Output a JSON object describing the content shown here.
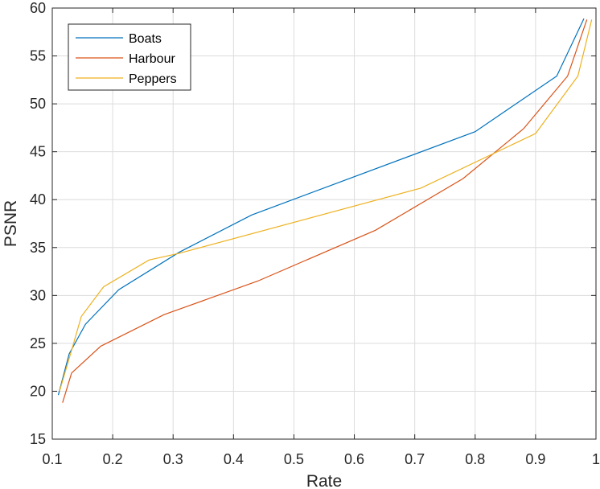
{
  "chart_data": {
    "type": "line",
    "xlabel": "Rate",
    "ylabel": "PSNR",
    "xlim": [
      0.1,
      1
    ],
    "ylim": [
      15,
      60
    ],
    "xticks": [
      0.1,
      0.2,
      0.3,
      0.4,
      0.5,
      0.6,
      0.7,
      0.8,
      0.9,
      1
    ],
    "xtick_labels": [
      "0.1",
      "0.2",
      "0.3",
      "0.4",
      "0.5",
      "0.6",
      "0.7",
      "0.8",
      "0.9",
      "1"
    ],
    "yticks": [
      15,
      20,
      25,
      30,
      35,
      40,
      45,
      50,
      55,
      60
    ],
    "ytick_labels": [
      "15",
      "20",
      "25",
      "30",
      "35",
      "40",
      "45",
      "50",
      "55",
      "60"
    ],
    "grid": true,
    "legend_position": "top-left",
    "series": [
      {
        "name": "Boats",
        "color": "#0072BD",
        "points": [
          [
            0.11,
            19.6
          ],
          [
            0.128,
            23.9
          ],
          [
            0.155,
            27.0
          ],
          [
            0.21,
            30.6
          ],
          [
            0.31,
            34.5
          ],
          [
            0.43,
            38.4
          ],
          [
            0.8,
            47.1
          ],
          [
            0.935,
            52.9
          ],
          [
            0.98,
            58.9
          ]
        ]
      },
      {
        "name": "Harbour",
        "color": "#D95319",
        "points": [
          [
            0.117,
            18.8
          ],
          [
            0.132,
            21.9
          ],
          [
            0.18,
            24.7
          ],
          [
            0.285,
            28.0
          ],
          [
            0.44,
            31.5
          ],
          [
            0.635,
            36.8
          ],
          [
            0.78,
            42.2
          ],
          [
            0.88,
            47.4
          ],
          [
            0.953,
            52.9
          ],
          [
            0.985,
            58.8
          ]
        ]
      },
      {
        "name": "Peppers",
        "color": "#EDB120",
        "points": [
          [
            0.112,
            20.0
          ],
          [
            0.133,
            24.5
          ],
          [
            0.148,
            27.8
          ],
          [
            0.185,
            30.9
          ],
          [
            0.26,
            33.7
          ],
          [
            0.31,
            34.4
          ],
          [
            0.71,
            41.2
          ],
          [
            0.9,
            46.9
          ],
          [
            0.97,
            52.9
          ],
          [
            0.993,
            58.8
          ]
        ]
      }
    ]
  }
}
